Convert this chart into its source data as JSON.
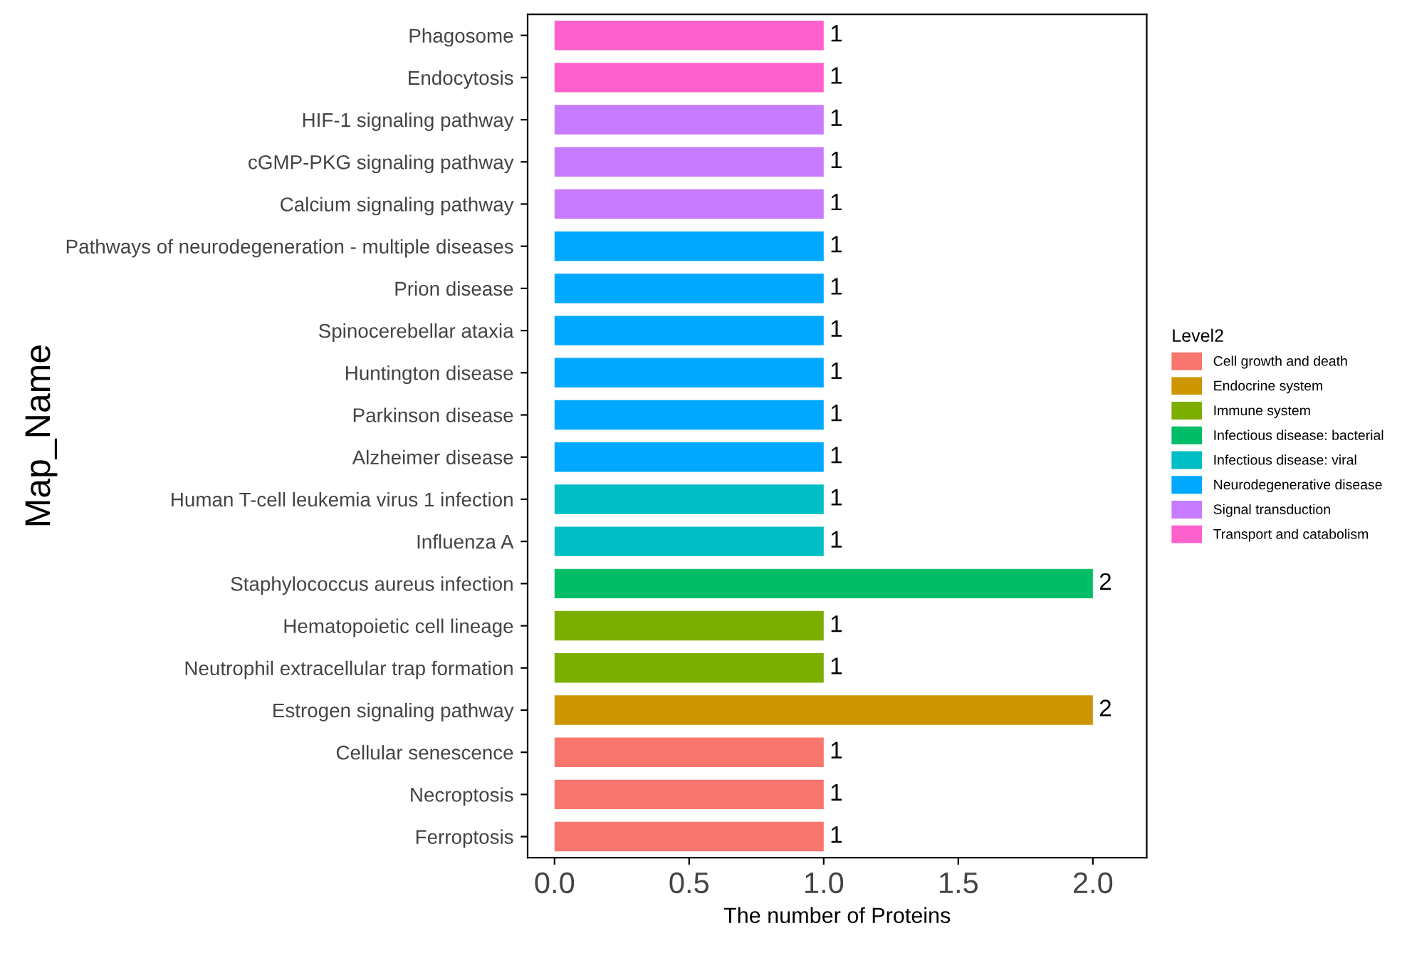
{
  "chart_data": {
    "type": "bar",
    "orientation": "horizontal",
    "xlabel": "The number of Proteins",
    "ylabel": "Map_Name",
    "legend_title": "Level2",
    "categories": [
      "Phagosome",
      "Endocytosis",
      "HIF-1 signaling pathway",
      "cGMP-PKG signaling pathway",
      "Calcium signaling pathway",
      "Pathways of neurodegeneration - multiple diseases",
      "Prion disease",
      "Spinocerebellar ataxia",
      "Huntington disease",
      "Parkinson disease",
      "Alzheimer disease",
      "Human T-cell leukemia virus 1 infection",
      "Influenza A",
      "Staphylococcus aureus infection",
      "Hematopoietic cell lineage",
      "Neutrophil extracellular trap formation",
      "Estrogen signaling pathway",
      "Cellular senescence",
      "Necroptosis",
      "Ferroptosis"
    ],
    "series": [
      {
        "name": "Cell growth and death",
        "color": "#f8766d",
        "values": [
          null,
          null,
          null,
          null,
          null,
          null,
          null,
          null,
          null,
          null,
          null,
          null,
          null,
          null,
          null,
          null,
          null,
          1,
          1,
          1
        ]
      },
      {
        "name": "Endocrine system",
        "color": "#cd9600",
        "values": [
          null,
          null,
          null,
          null,
          null,
          null,
          null,
          null,
          null,
          null,
          null,
          null,
          null,
          null,
          null,
          null,
          2,
          null,
          null,
          null
        ]
      },
      {
        "name": "Immune system",
        "color": "#7cae00",
        "values": [
          null,
          null,
          null,
          null,
          null,
          null,
          null,
          null,
          null,
          null,
          null,
          null,
          null,
          null,
          1,
          1,
          null,
          null,
          null,
          null
        ]
      },
      {
        "name": "Infectious disease: bacterial",
        "color": "#00be67",
        "values": [
          null,
          null,
          null,
          null,
          null,
          null,
          null,
          null,
          null,
          null,
          null,
          null,
          null,
          2,
          null,
          null,
          null,
          null,
          null,
          null
        ]
      },
      {
        "name": "Infectious disease: viral",
        "color": "#00bfc4",
        "values": [
          null,
          null,
          null,
          null,
          null,
          null,
          null,
          null,
          null,
          null,
          null,
          1,
          1,
          null,
          null,
          null,
          null,
          null,
          null,
          null
        ]
      },
      {
        "name": "Neurodegenerative disease",
        "color": "#00a9ff",
        "values": [
          null,
          null,
          null,
          null,
          null,
          1,
          1,
          1,
          1,
          1,
          1,
          null,
          null,
          null,
          null,
          null,
          null,
          null,
          null,
          null
        ]
      },
      {
        "name": "Signal transduction",
        "color": "#c77cff",
        "values": [
          null,
          null,
          1,
          1,
          1,
          null,
          null,
          null,
          null,
          null,
          null,
          null,
          null,
          null,
          null,
          null,
          null,
          null,
          null,
          null
        ]
      },
      {
        "name": "Transport and catabolism",
        "color": "#ff61cc",
        "values": [
          1,
          1,
          null,
          null,
          null,
          null,
          null,
          null,
          null,
          null,
          null,
          null,
          null,
          null,
          null,
          null,
          null,
          null,
          null,
          null
        ]
      }
    ],
    "xlim": [
      -0.1,
      2.2
    ],
    "xticks": [
      {
        "value": 0,
        "label": "0.0"
      },
      {
        "value": 0.5,
        "label": "0.5"
      },
      {
        "value": 1,
        "label": "1.0"
      },
      {
        "value": 1.5,
        "label": "1.5"
      },
      {
        "value": 2,
        "label": "2.0"
      }
    ],
    "data_labels": true,
    "legend": "right",
    "grid": false
  }
}
